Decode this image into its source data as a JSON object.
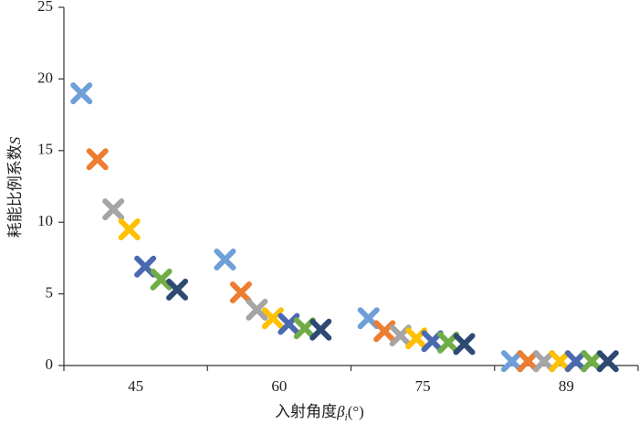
{
  "chart_data": {
    "type": "scatter",
    "categories": [
      "45",
      "60",
      "75",
      "89"
    ],
    "x_label": {
      "text": "入射角度",
      "symbol": "β",
      "subscript": "i",
      "unit": "(°)"
    },
    "y_label": {
      "text": "耗能比例系数",
      "symbol": "S"
    },
    "ylim": [
      0,
      25
    ],
    "yticks": [
      0,
      5,
      10,
      15,
      20,
      25
    ],
    "series": [
      {
        "color": "#6f9fd8",
        "values": [
          19.0,
          7.4,
          3.3,
          0.3
        ]
      },
      {
        "color": "#ed7d31",
        "values": [
          14.4,
          5.1,
          2.4,
          0.3
        ]
      },
      {
        "color": "#a5a5a5",
        "values": [
          10.9,
          3.9,
          2.1,
          0.3
        ]
      },
      {
        "color": "#ffc000",
        "values": [
          9.5,
          3.3,
          1.9,
          0.3
        ]
      },
      {
        "color": "#4a69b0",
        "values": [
          6.9,
          2.9,
          1.7,
          0.3
        ]
      },
      {
        "color": "#70ad47",
        "values": [
          6.0,
          2.6,
          1.6,
          0.3
        ]
      },
      {
        "color": "#2e4a73",
        "values": [
          5.3,
          2.5,
          1.5,
          0.3
        ]
      }
    ]
  }
}
